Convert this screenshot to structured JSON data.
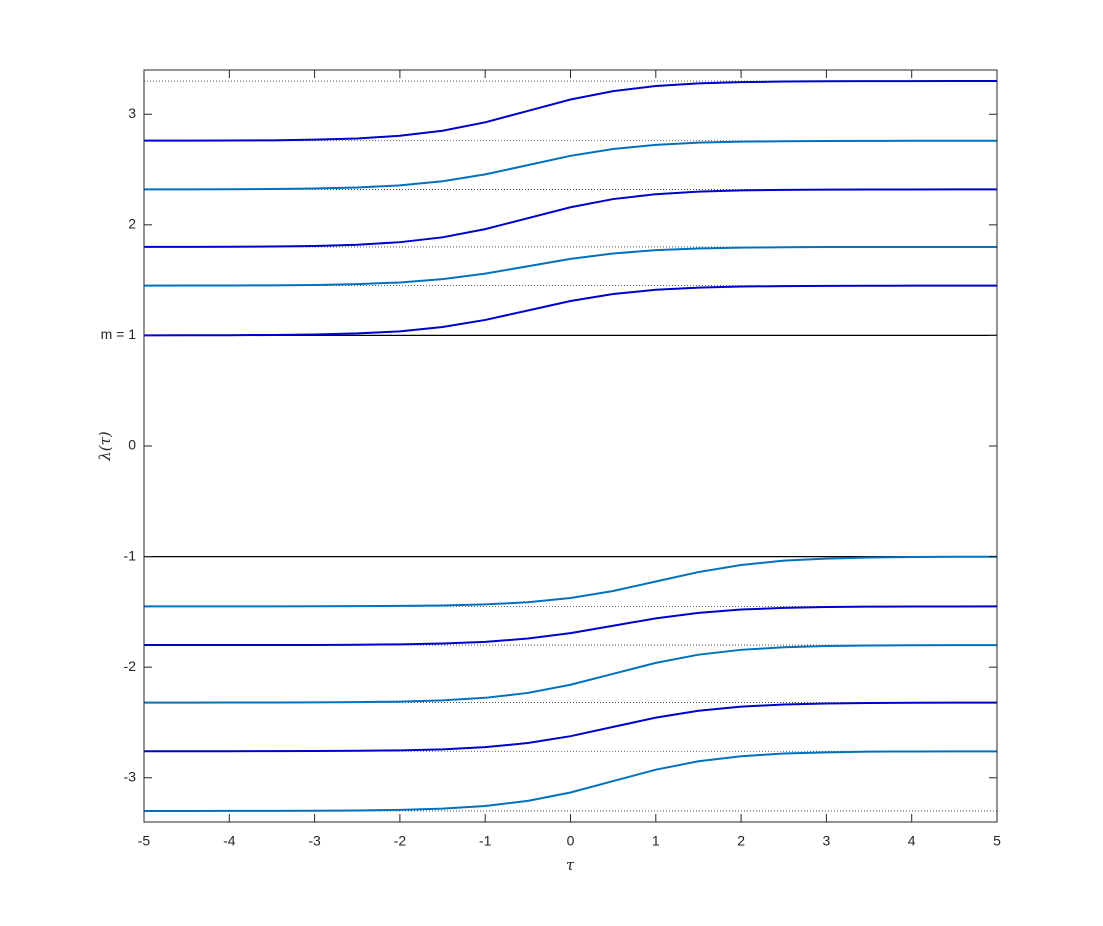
{
  "chart_data": {
    "type": "line",
    "xlabel": "τ",
    "ylabel": "λ(τ)",
    "xlim": [
      -5,
      5
    ],
    "ylim": [
      -3.4,
      3.4
    ],
    "xticks": [
      -5,
      -4,
      -3,
      -2,
      -1,
      0,
      1,
      2,
      3,
      4,
      5
    ],
    "yticks": [
      -3,
      -2,
      -1,
      0,
      {
        "value": 1,
        "label": "m = 1"
      },
      2,
      3
    ],
    "solid_levels": [
      1,
      -1
    ],
    "dotted_levels": [
      3.3,
      2.76,
      2.32,
      1.8,
      1.45,
      -1.45,
      -1.8,
      -2.32,
      -2.76,
      -3.3
    ],
    "x": [
      -5,
      -4.5,
      -4,
      -3.5,
      -3,
      -2.5,
      -2,
      -1.5,
      -1,
      -0.5,
      0,
      0.5,
      1,
      1.5,
      2,
      2.5,
      3,
      3.5,
      4,
      4.5,
      5
    ],
    "series": [
      {
        "color": "#0000cd",
        "values": [
          1.0,
          1.001,
          1.002,
          1.004,
          1.008,
          1.018,
          1.037,
          1.076,
          1.14,
          1.225,
          1.311,
          1.374,
          1.413,
          1.432,
          1.442,
          1.446,
          1.448,
          1.449,
          1.45,
          1.45,
          1.45
        ]
      },
      {
        "color": "#0072bd",
        "values": [
          1.45,
          1.451,
          1.451,
          1.453,
          1.456,
          1.464,
          1.479,
          1.509,
          1.559,
          1.625,
          1.692,
          1.741,
          1.771,
          1.786,
          1.794,
          1.797,
          1.799,
          1.799,
          1.8,
          1.8,
          1.8
        ]
      },
      {
        "color": "#0000cd",
        "values": [
          1.801,
          1.801,
          1.802,
          1.804,
          1.809,
          1.82,
          1.843,
          1.887,
          1.961,
          2.06,
          2.159,
          2.233,
          2.277,
          2.3,
          2.311,
          2.316,
          2.318,
          2.319,
          2.319,
          2.32,
          2.32
        ]
      },
      {
        "color": "#0072bd",
        "values": [
          2.32,
          2.321,
          2.322,
          2.324,
          2.328,
          2.337,
          2.357,
          2.394,
          2.456,
          2.54,
          2.624,
          2.686,
          2.723,
          2.743,
          2.752,
          2.756,
          2.758,
          2.759,
          2.76,
          2.76,
          2.76
        ]
      },
      {
        "color": "#0000cd",
        "values": [
          2.761,
          2.761,
          2.762,
          2.764,
          2.77,
          2.781,
          2.805,
          2.851,
          2.927,
          3.03,
          3.133,
          3.209,
          3.255,
          3.279,
          3.29,
          3.296,
          3.298,
          3.299,
          3.299,
          3.3,
          3.3
        ]
      },
      {
        "color": "#0072bd",
        "values": [
          -1.45,
          -1.45,
          -1.45,
          -1.45,
          -1.449,
          -1.448,
          -1.446,
          -1.442,
          -1.432,
          -1.413,
          -1.374,
          -1.311,
          -1.225,
          -1.14,
          -1.076,
          -1.037,
          -1.018,
          -1.008,
          -1.004,
          -1.002,
          -1.001
        ]
      },
      {
        "color": "#0000cd",
        "values": [
          -1.8,
          -1.8,
          -1.8,
          -1.799,
          -1.799,
          -1.797,
          -1.794,
          -1.786,
          -1.771,
          -1.741,
          -1.692,
          -1.625,
          -1.559,
          -1.509,
          -1.479,
          -1.464,
          -1.456,
          -1.453,
          -1.451,
          -1.451,
          -1.45
        ]
      },
      {
        "color": "#0072bd",
        "values": [
          -2.32,
          -2.32,
          -2.319,
          -2.319,
          -2.318,
          -2.316,
          -2.311,
          -2.3,
          -2.277,
          -2.233,
          -2.159,
          -2.06,
          -1.961,
          -1.887,
          -1.843,
          -1.82,
          -1.809,
          -1.804,
          -1.802,
          -1.801,
          -1.801
        ]
      },
      {
        "color": "#0000cd",
        "values": [
          -2.76,
          -2.76,
          -2.76,
          -2.759,
          -2.758,
          -2.756,
          -2.752,
          -2.743,
          -2.723,
          -2.686,
          -2.624,
          -2.54,
          -2.456,
          -2.394,
          -2.357,
          -2.337,
          -2.328,
          -2.324,
          -2.322,
          -2.321,
          -2.32
        ]
      },
      {
        "color": "#0072bd",
        "values": [
          -3.3,
          -3.3,
          -3.299,
          -3.299,
          -3.298,
          -3.296,
          -3.29,
          -3.279,
          -3.255,
          -3.209,
          -3.133,
          -3.03,
          -2.927,
          -2.851,
          -2.805,
          -2.781,
          -2.77,
          -2.764,
          -2.762,
          -2.761,
          -2.761
        ]
      }
    ]
  }
}
